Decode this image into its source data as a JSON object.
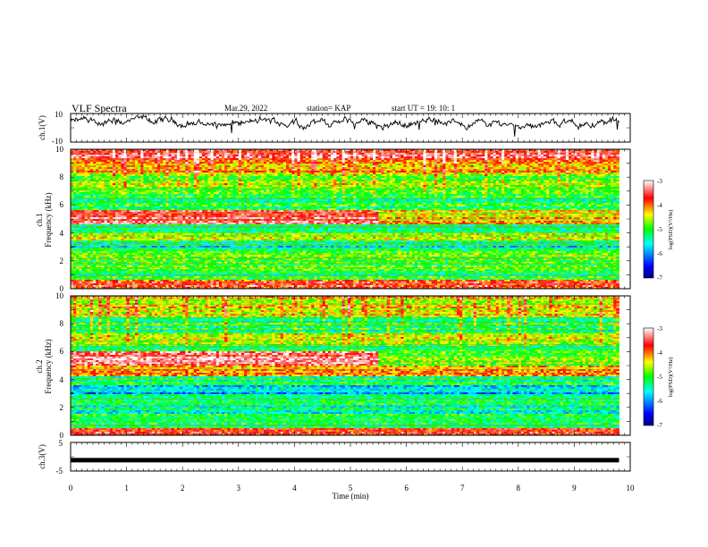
{
  "header": {
    "title": "VLF Spectra",
    "date": "Mar.29, 2022",
    "station": "station= KAP",
    "start_time": "start  UT =   19: 10: 1"
  },
  "chart_data": [
    {
      "type": "line",
      "name": "ch1-waveform",
      "ylabel": "ch.1(V)",
      "ylim": [
        -10,
        10
      ],
      "yticks": [
        "10",
        "-10"
      ],
      "xlim": [
        0,
        10
      ],
      "x_end": 9.8
    },
    {
      "type": "heatmap",
      "name": "ch1-spectrogram",
      "ylabel_lines": [
        "ch.1",
        "Frequency  (kHz)"
      ],
      "ylim": [
        0,
        10
      ],
      "yticks": [
        "0",
        "2",
        "4",
        "6",
        "8",
        "10"
      ],
      "xlim": [
        0,
        10
      ],
      "x_end": 9.8,
      "shift_time": 5.5,
      "colorbar": {
        "label": "log(PSD)(V²/Hz)",
        "min": -7,
        "max": -3,
        "ticks": [
          "-3",
          "-4",
          "-5",
          "-6",
          "-7"
        ]
      }
    },
    {
      "type": "heatmap",
      "name": "ch2-spectrogram",
      "ylabel_lines": [
        "ch.2",
        "Frequency  (kHz)"
      ],
      "ylim": [
        0,
        10
      ],
      "yticks": [
        "0",
        "2",
        "4",
        "6",
        "8",
        "10"
      ],
      "xlim": [
        0,
        10
      ],
      "x_end": 9.8,
      "shift_time": 5.5,
      "colorbar": {
        "label": "log(PSD)(V²/Hz)",
        "min": -7,
        "max": -3,
        "ticks": [
          "-3",
          "-4",
          "-5",
          "-6",
          "-7"
        ]
      }
    },
    {
      "type": "line",
      "name": "ch3-waveform",
      "ylabel": "ch.3(V)",
      "ylim": [
        -5,
        5
      ],
      "yticks": [
        "5",
        "-5"
      ],
      "xlim": [
        0,
        10
      ],
      "x_end": 9.8,
      "level": -1.2
    }
  ],
  "xaxis": {
    "label": "Time  (min)",
    "ticks": [
      "0",
      "1",
      "2",
      "3",
      "4",
      "5",
      "6",
      "7",
      "8",
      "9",
      "10"
    ]
  },
  "colors": {
    "axis": "#000000",
    "colormap": [
      "#0000ff",
      "#00ffff",
      "#00ff00",
      "#ffff00",
      "#ff0000",
      "#ffffff"
    ]
  }
}
